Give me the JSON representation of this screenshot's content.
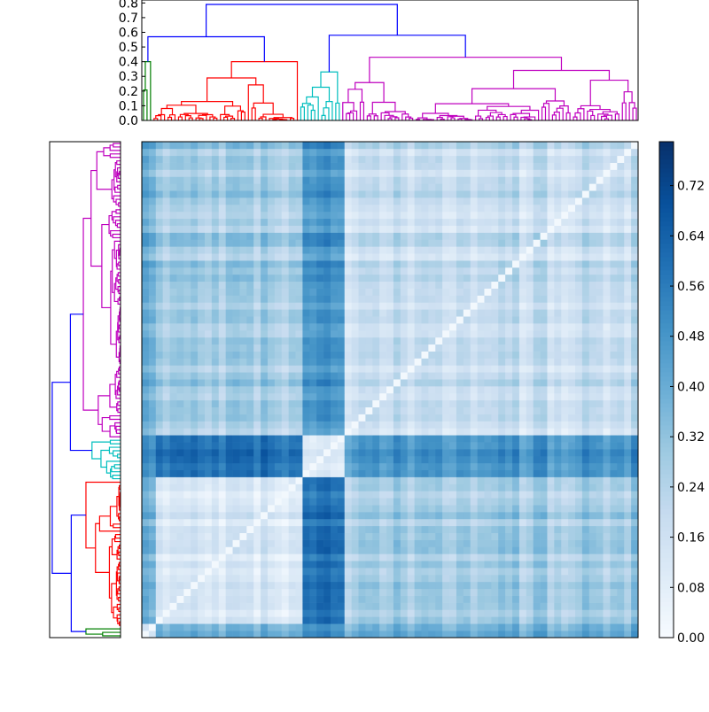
{
  "chart_data": {
    "type": "heatmap",
    "title": "",
    "description_kind": "clustered distance matrix with row and column dendrograms",
    "colorbar": {
      "colormap": "Blues",
      "range": [
        0,
        0.79
      ],
      "ticks": [
        "0.00",
        "0.08",
        "0.16",
        "0.24",
        "0.32",
        "0.40",
        "0.48",
        "0.56",
        "0.64",
        "0.72"
      ]
    },
    "top_dendrogram": {
      "ylim": [
        0,
        0.82
      ],
      "yticks": [
        "0.0",
        "0.1",
        "0.2",
        "0.3",
        "0.4",
        "0.5",
        "0.6",
        "0.7",
        "0.8"
      ]
    },
    "clusters": [
      {
        "color": "#008000",
        "leaves": 3,
        "height": 0.4
      },
      {
        "color": "#ff0000",
        "leaves": 42,
        "height": 0.4
      },
      {
        "color": "#00bfbf",
        "leaves": 12,
        "height": 0.33
      },
      {
        "color": "#bf00bf",
        "leaves": 85,
        "height": 0.43
      }
    ],
    "links": [
      {
        "join": [
          0,
          1
        ],
        "height": 0.57
      },
      {
        "join": [
          2,
          3
        ],
        "height": 0.58
      },
      {
        "join": [
          "left",
          "right"
        ],
        "height": 0.79
      }
    ],
    "link_color": "#0000ff",
    "block_mean_distance": [
      [
        0.1,
        0.36,
        0.5,
        0.36
      ],
      [
        0.36,
        0.1,
        0.6,
        0.25
      ],
      [
        0.5,
        0.6,
        0.14,
        0.48
      ],
      [
        0.36,
        0.25,
        0.48,
        0.15
      ]
    ]
  }
}
